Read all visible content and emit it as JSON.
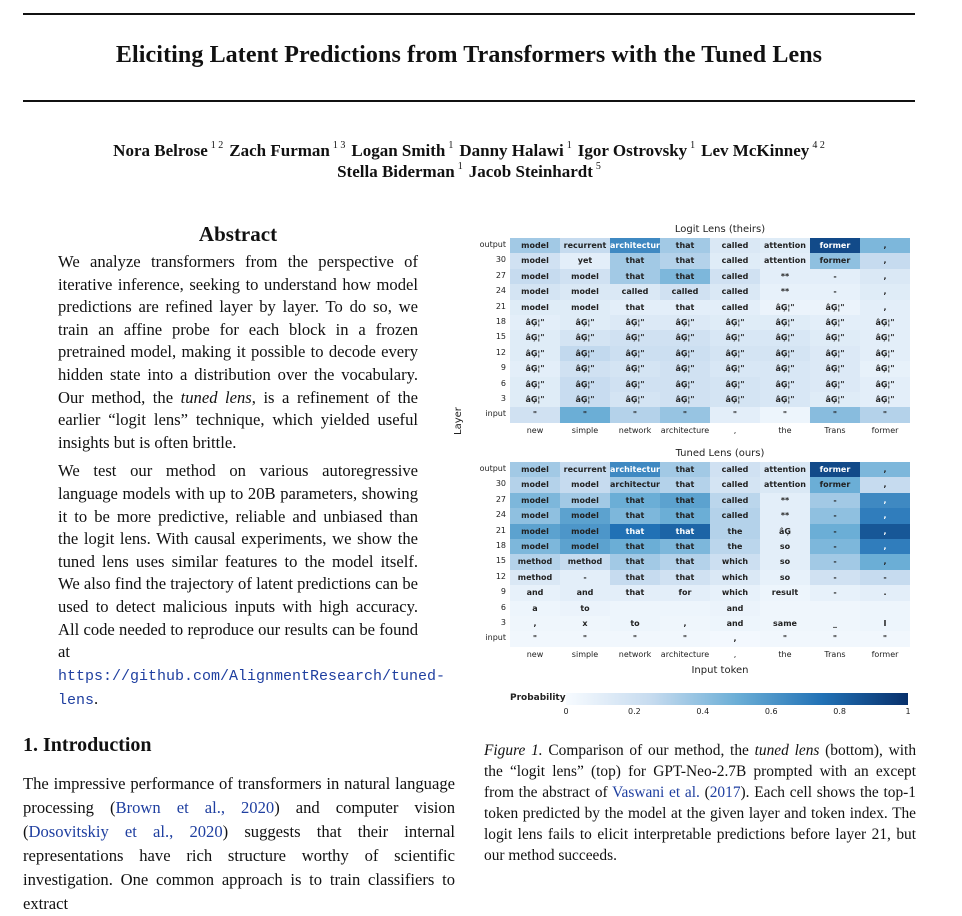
{
  "title": "Eliciting Latent Predictions from Transformers with the Tuned Lens",
  "authors_line1": [
    {
      "name": "Nora Belrose",
      "aff": "1 2"
    },
    {
      "name": "Zach Furman",
      "aff": "1 3"
    },
    {
      "name": "Logan Smith",
      "aff": "1"
    },
    {
      "name": "Danny Halawi",
      "aff": "1"
    },
    {
      "name": "Igor Ostrovsky",
      "aff": "1"
    },
    {
      "name": "Lev McKinney",
      "aff": "4 2"
    }
  ],
  "authors_line2": [
    {
      "name": "Stella Biderman",
      "aff": "1"
    },
    {
      "name": "Jacob Steinhardt",
      "aff": "5"
    }
  ],
  "abstract": {
    "heading": "Abstract",
    "p1_a": "We analyze transformers from the perspective of iterative inference, seeking to understand how model predictions are refined layer by layer. To do so, we train an affine probe for each block in a frozen pretrained model, making it possible to decode every hidden state into a distribution over the vocabulary. Our method, the ",
    "p1_em": "tuned lens",
    "p1_b": ", is a refinement of the earlier “logit lens” technique, which yielded useful insights but is often brittle.",
    "p2": "We test our method on various autoregressive language models with up to 20B parameters, showing it to be more predictive, reliable and unbiased than the logit lens. With causal experiments, we show the tuned lens uses similar features to the model itself. We also find the trajectory of latent predictions can be used to detect malicious inputs with high accuracy. All code needed to reproduce our results can be found at ",
    "url": "https://github.com/AlignmentResearch/tuned-lens",
    "p2_end": "."
  },
  "intro": {
    "heading": "1. Introduction",
    "text_a": "The impressive performance of transformers in natural language processing (",
    "cite1": "Brown et al., 2020",
    "text_b": ") and computer vision (",
    "cite2": "Dosovitskiy et al., 2020",
    "text_c": ") suggests that their internal representations have rich structure worthy of scientific investigation. One common approach is to train classifiers to extract"
  },
  "caption": {
    "label": "Figure 1.",
    "text_a": " Comparison of our method, the ",
    "em": "tuned lens",
    "text_b": " (bottom), with the “logit lens” (top) for GPT-Neo-2.7B prompted with an except from the abstract of ",
    "cite": "Vaswani et al.",
    "text_c": " (",
    "year": "2017",
    "text_d": "). Each cell shows the top-1 token predicted by the model at the given layer and token index. The logit lens fails to elicit interpretable predictions before layer 21, but our method succeeds."
  },
  "chart_data": {
    "type": "heatmap",
    "ylabel": "Layer",
    "xlabel": "Input token",
    "colorbar_label": "Probability",
    "colorbar_ticks": [
      "0",
      "0.2",
      "0.4",
      "0.6",
      "0.8",
      "1"
    ],
    "colorscale": [
      "#f7fbff",
      "#08306b"
    ],
    "columns": [
      "new",
      "simple",
      "network",
      "architecture",
      ",",
      "the",
      "Trans",
      "former"
    ],
    "rows": [
      "output",
      "30",
      "27",
      "24",
      "21",
      "18",
      "15",
      "12",
      "9",
      "6",
      "3",
      "input"
    ],
    "panels": [
      {
        "title": "Logit Lens (theirs)",
        "tokens": [
          [
            "model",
            "recurrent",
            "architecture",
            "that",
            "called",
            "attention",
            "former",
            ","
          ],
          [
            "model",
            "yet",
            "that",
            "that",
            "called",
            "attention",
            "former",
            ","
          ],
          [
            "model",
            "model",
            "that",
            "that",
            "called",
            "**",
            "-",
            ","
          ],
          [
            "model",
            "model",
            "called",
            "called",
            "called",
            "**",
            "-",
            ","
          ],
          [
            "model",
            "model",
            "that",
            "that",
            "called",
            "âĢ¦\"",
            "âĢ¦\"",
            ","
          ],
          [
            "âĢ¦\"",
            "âĢ¦\"",
            "âĢ¦\"",
            "âĢ¦\"",
            "âĢ¦\"",
            "âĢ¦\"",
            "âĢ¦\"",
            "âĢ¦\""
          ],
          [
            "âĢ¦\"",
            "âĢ¦\"",
            "âĢ¦\"",
            "âĢ¦\"",
            "âĢ¦\"",
            "âĢ¦\"",
            "âĢ¦\"",
            "âĢ¦\""
          ],
          [
            "âĢ¦\"",
            "âĢ¦\"",
            "âĢ¦\"",
            "âĢ¦\"",
            "âĢ¦\"",
            "âĢ¦\"",
            "âĢ¦\"",
            "âĢ¦\""
          ],
          [
            "âĢ¦\"",
            "âĢ¦\"",
            "âĢ¦\"",
            "âĢ¦\"",
            "âĢ¦\"",
            "âĢ¦\"",
            "âĢ¦\"",
            "âĢ¦\""
          ],
          [
            "âĢ¦\"",
            "âĢ¦\"",
            "âĢ¦\"",
            "âĢ¦\"",
            "âĢ¦\"",
            "âĢ¦\"",
            "âĢ¦\"",
            "âĢ¦\""
          ],
          [
            "âĢ¦\"",
            "âĢ¦\"",
            "âĢ¦\"",
            "âĢ¦\"",
            "âĢ¦\"",
            "âĢ¦\"",
            "âĢ¦\"",
            "âĢ¦\""
          ],
          [
            "\"",
            "\"",
            "\"",
            "\"",
            "\"",
            "\"",
            "\"",
            "\""
          ]
        ],
        "probs": [
          [
            0.35,
            0.25,
            0.65,
            0.35,
            0.15,
            0.12,
            0.9,
            0.45
          ],
          [
            0.2,
            0.1,
            0.35,
            0.3,
            0.12,
            0.1,
            0.4,
            0.25
          ],
          [
            0.25,
            0.2,
            0.35,
            0.45,
            0.2,
            0.1,
            0.1,
            0.15
          ],
          [
            0.18,
            0.15,
            0.15,
            0.2,
            0.15,
            0.08,
            0.08,
            0.12
          ],
          [
            0.12,
            0.12,
            0.1,
            0.1,
            0.1,
            0.06,
            0.06,
            0.1
          ],
          [
            0.1,
            0.12,
            0.14,
            0.14,
            0.12,
            0.12,
            0.1,
            0.1
          ],
          [
            0.12,
            0.18,
            0.2,
            0.2,
            0.16,
            0.16,
            0.12,
            0.1
          ],
          [
            0.12,
            0.26,
            0.22,
            0.22,
            0.18,
            0.18,
            0.14,
            0.1
          ],
          [
            0.1,
            0.2,
            0.18,
            0.2,
            0.16,
            0.16,
            0.14,
            0.08
          ],
          [
            0.12,
            0.24,
            0.2,
            0.2,
            0.18,
            0.16,
            0.14,
            0.1
          ],
          [
            0.12,
            0.24,
            0.18,
            0.2,
            0.18,
            0.16,
            0.12,
            0.1
          ],
          [
            0.2,
            0.5,
            0.3,
            0.38,
            0.1,
            0.05,
            0.42,
            0.3
          ]
        ]
      },
      {
        "title": "Tuned Lens (ours)",
        "tokens": [
          [
            "model",
            "recurrent",
            "architecture",
            "that",
            "called",
            "attention",
            "former",
            ","
          ],
          [
            "model",
            "model",
            "architecture",
            "that",
            "called",
            "attention",
            "former",
            ","
          ],
          [
            "model",
            "model",
            "that",
            "that",
            "called",
            "**",
            "-",
            ","
          ],
          [
            "model",
            "model",
            "that",
            "that",
            "called",
            "**",
            "-",
            ","
          ],
          [
            "model",
            "model",
            "that",
            "that",
            "the",
            "âĢ",
            "-",
            ","
          ],
          [
            "model",
            "model",
            "that",
            "that",
            "the",
            "so",
            "-",
            ","
          ],
          [
            "method",
            "method",
            "that",
            "that",
            "which",
            "so",
            "-",
            ","
          ],
          [
            "method",
            "-",
            "that",
            "that",
            "which",
            "so",
            "-",
            "-"
          ],
          [
            "and",
            "and",
            "that",
            "for",
            "which",
            "result",
            "-",
            "."
          ],
          [
            "a",
            "to",
            "",
            "",
            "and",
            "",
            "",
            ""
          ],
          [
            ",",
            "x",
            "to",
            ",",
            "and",
            "same",
            "_",
            "I"
          ],
          [
            "\"",
            "\"",
            "\"",
            "\"",
            ",",
            "\"",
            "\"",
            "\""
          ]
        ],
        "probs": [
          [
            0.35,
            0.25,
            0.65,
            0.35,
            0.2,
            0.15,
            0.9,
            0.45
          ],
          [
            0.3,
            0.25,
            0.35,
            0.3,
            0.18,
            0.15,
            0.5,
            0.25
          ],
          [
            0.45,
            0.35,
            0.5,
            0.55,
            0.28,
            0.1,
            0.35,
            0.65
          ],
          [
            0.4,
            0.55,
            0.45,
            0.5,
            0.3,
            0.1,
            0.4,
            0.7
          ],
          [
            0.55,
            0.6,
            0.75,
            0.8,
            0.3,
            0.1,
            0.5,
            0.85
          ],
          [
            0.45,
            0.55,
            0.5,
            0.45,
            0.28,
            0.1,
            0.45,
            0.7
          ],
          [
            0.3,
            0.25,
            0.35,
            0.3,
            0.22,
            0.1,
            0.35,
            0.5
          ],
          [
            0.15,
            0.1,
            0.25,
            0.2,
            0.15,
            0.08,
            0.2,
            0.25
          ],
          [
            0.08,
            0.1,
            0.1,
            0.1,
            0.08,
            0.05,
            0.08,
            0.1
          ],
          [
            0.05,
            0.06,
            0.05,
            0.05,
            0.06,
            0.04,
            0.04,
            0.05
          ],
          [
            0.04,
            0.04,
            0.05,
            0.04,
            0.05,
            0.04,
            0.04,
            0.05
          ],
          [
            0.03,
            0.03,
            0.03,
            0.03,
            0.02,
            0.03,
            0.03,
            0.03
          ]
        ]
      }
    ]
  }
}
